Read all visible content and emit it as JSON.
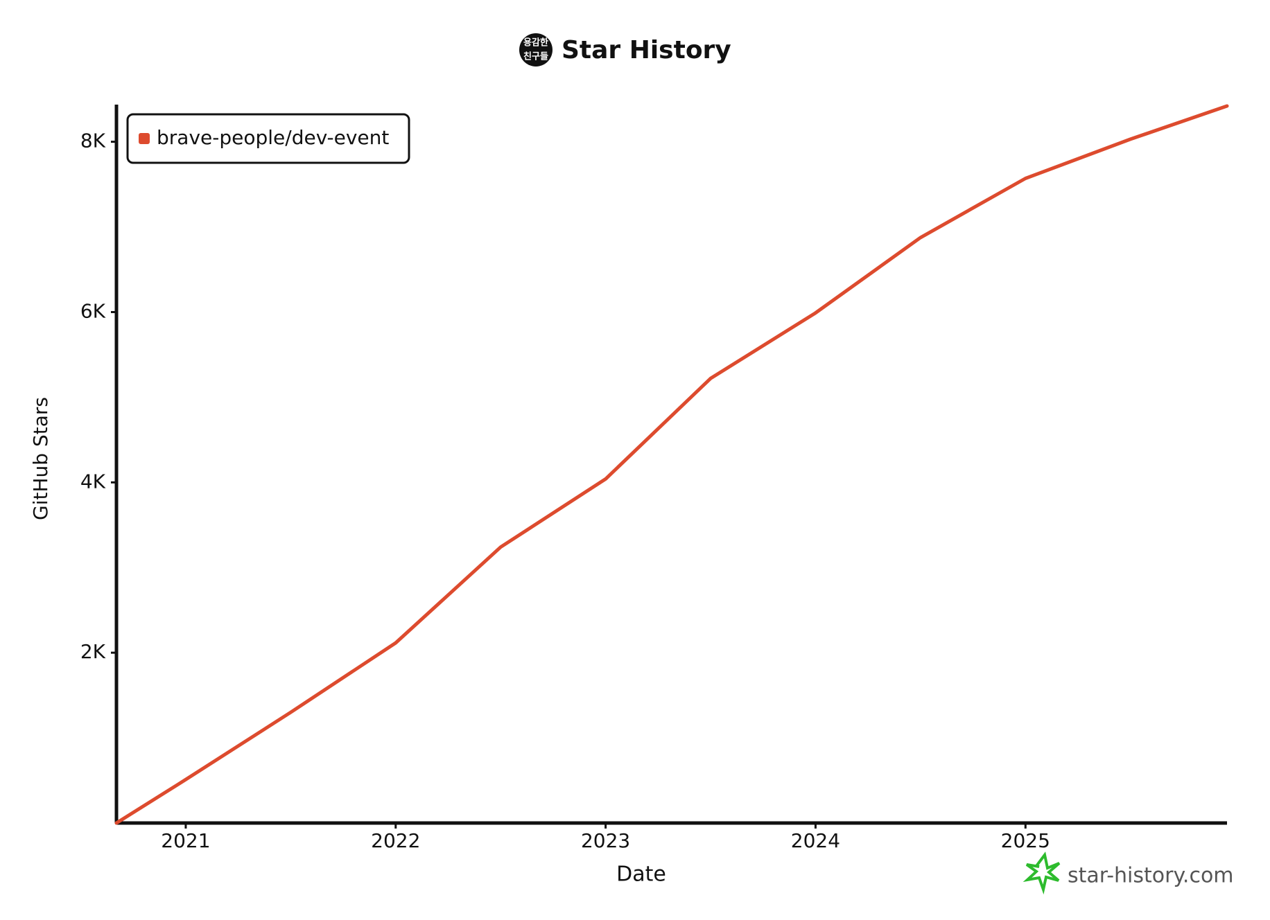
{
  "chart_data": {
    "type": "line",
    "title": "Star History",
    "logo_lines": [
      "용감한",
      "친구들"
    ],
    "x_label": "Date",
    "y_label": "GitHub Stars",
    "watermark": "star-history.com",
    "x": [
      2020.67,
      2021.0,
      2021.5,
      2022.0,
      2022.5,
      2023.0,
      2023.5,
      2024.0,
      2024.5,
      2025.0,
      2025.5,
      2025.96
    ],
    "series": [
      {
        "name": "brave-people/dev-event",
        "color": "#dd4b2e",
        "values": [
          0,
          510,
          1300,
          2115,
          3240,
          4040,
          5220,
          5990,
          6875,
          7570,
          8030,
          8420
        ]
      }
    ],
    "xlim": [
      2020.67,
      2025.96
    ],
    "xticks": [
      2021,
      2022,
      2023,
      2024,
      2025
    ],
    "ylim": [
      0,
      8420
    ],
    "yticks": [
      {
        "value": 2000,
        "label": "2K"
      },
      {
        "value": 4000,
        "label": "4K"
      },
      {
        "value": 6000,
        "label": "6K"
      },
      {
        "value": 8000,
        "label": "8K"
      }
    ],
    "legend": "top-left",
    "grid": false
  }
}
